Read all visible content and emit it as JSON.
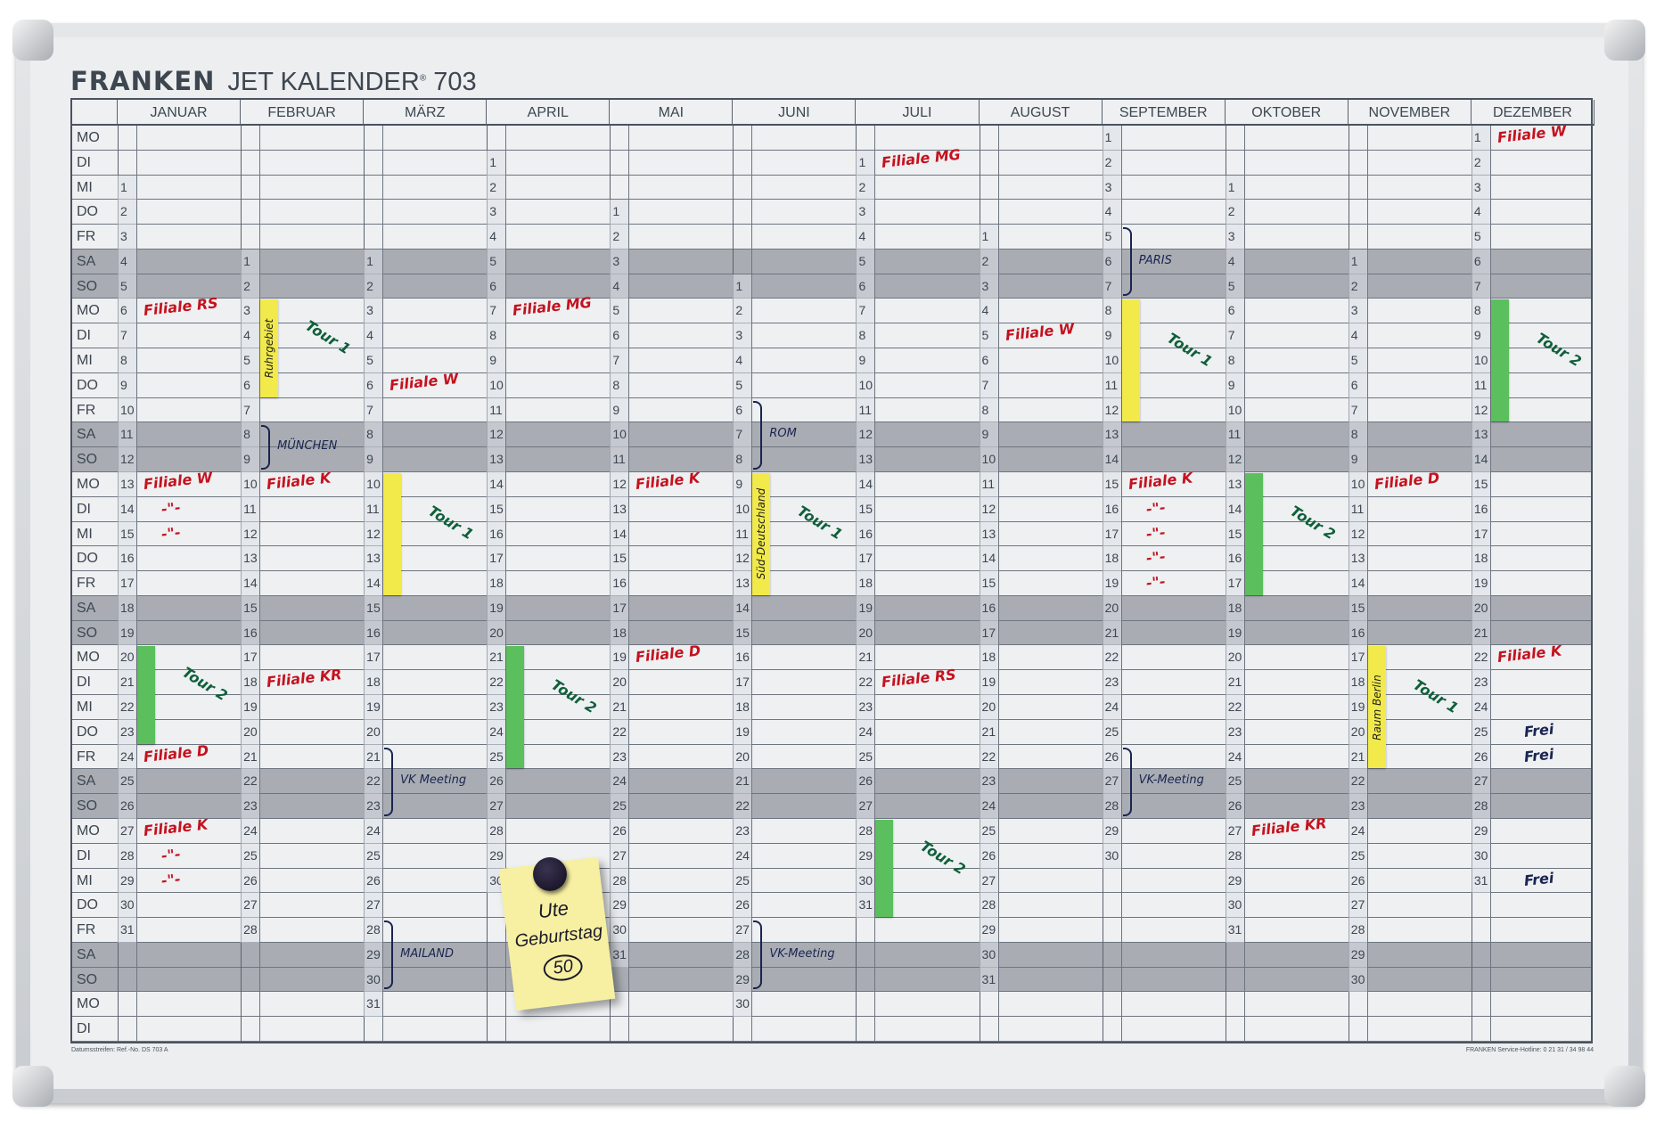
{
  "header": {
    "brand": "FRANKEN",
    "product": "JET KALENDER",
    "reg": "®",
    "model": "703"
  },
  "weekdays": [
    "MO",
    "DI",
    "MI",
    "DO",
    "FR",
    "SA",
    "SO",
    "MO",
    "DI",
    "MI",
    "DO",
    "FR",
    "SA",
    "SO",
    "MO",
    "DI",
    "MI",
    "DO",
    "FR",
    "SA",
    "SO",
    "MO",
    "DI",
    "MI",
    "DO",
    "FR",
    "SA",
    "SO",
    "MO",
    "DI",
    "MI",
    "DO",
    "FR",
    "SA",
    "SO",
    "MO",
    "DI"
  ],
  "weekend": [
    "SA",
    "SO"
  ],
  "months": [
    {
      "name": "JANUAR",
      "first_row": 2,
      "days": 31
    },
    {
      "name": "FEBRUAR",
      "first_row": 5,
      "days": 28
    },
    {
      "name": "MÄRZ",
      "first_row": 5,
      "days": 31
    },
    {
      "name": "APRIL",
      "first_row": 1,
      "days": 30
    },
    {
      "name": "MAI",
      "first_row": 3,
      "days": 31
    },
    {
      "name": "JUNI",
      "first_row": 6,
      "days": 30
    },
    {
      "name": "JULI",
      "first_row": 1,
      "days": 31
    },
    {
      "name": "AUGUST",
      "first_row": 4,
      "days": 31
    },
    {
      "name": "SEPTEMBER",
      "first_row": 0,
      "days": 30
    },
    {
      "name": "OKTOBER",
      "first_row": 2,
      "days": 31
    },
    {
      "name": "NOVEMBER",
      "first_row": 5,
      "days": 30
    },
    {
      "name": "DEZEMBER",
      "first_row": 0,
      "days": 31
    }
  ],
  "colors": {
    "red": "#c4121e",
    "green": "#0f5f3a",
    "navy": "#1a2450",
    "yellow": "#f2ea4a",
    "stripgreen": "#5cbf5e"
  },
  "notes": [
    {
      "m": 0,
      "d": 6,
      "text": "Filiale RS",
      "c": "red"
    },
    {
      "m": 0,
      "d": 13,
      "text": "Filiale W",
      "c": "red"
    },
    {
      "m": 0,
      "d": 14,
      "text": "-\"-",
      "c": "red"
    },
    {
      "m": 0,
      "d": 15,
      "text": "-\"-",
      "c": "red"
    },
    {
      "m": 0,
      "d": 24,
      "text": "Filiale D",
      "c": "red"
    },
    {
      "m": 0,
      "d": 27,
      "text": "Filiale K",
      "c": "red"
    },
    {
      "m": 0,
      "d": 28,
      "text": "-\"-",
      "c": "red"
    },
    {
      "m": 0,
      "d": 29,
      "text": "-\"-",
      "c": "red"
    },
    {
      "m": 1,
      "d": 10,
      "text": "Filiale K",
      "c": "red"
    },
    {
      "m": 1,
      "d": 18,
      "text": "Filiale KR",
      "c": "red"
    },
    {
      "m": 2,
      "d": 6,
      "text": "Filiale W",
      "c": "red"
    },
    {
      "m": 3,
      "d": 7,
      "text": "Filiale MG",
      "c": "red"
    },
    {
      "m": 4,
      "d": 12,
      "text": "Filiale K",
      "c": "red"
    },
    {
      "m": 4,
      "d": 19,
      "text": "Filiale D",
      "c": "red"
    },
    {
      "m": 6,
      "d": 1,
      "text": "Filiale MG",
      "c": "red"
    },
    {
      "m": 6,
      "d": 22,
      "text": "Filiale RS",
      "c": "red"
    },
    {
      "m": 7,
      "d": 5,
      "text": "Filiale W",
      "c": "red"
    },
    {
      "m": 8,
      "d": 15,
      "text": "Filiale K",
      "c": "red"
    },
    {
      "m": 8,
      "d": 16,
      "text": "-\"-",
      "c": "red"
    },
    {
      "m": 8,
      "d": 17,
      "text": "-\"-",
      "c": "red"
    },
    {
      "m": 8,
      "d": 18,
      "text": "-\"-",
      "c": "red"
    },
    {
      "m": 8,
      "d": 19,
      "text": "-\"-",
      "c": "red"
    },
    {
      "m": 9,
      "d": 27,
      "text": "Filiale KR",
      "c": "red"
    },
    {
      "m": 10,
      "d": 10,
      "text": "Filiale D",
      "c": "red"
    },
    {
      "m": 11,
      "d": 1,
      "text": "Filiale W",
      "c": "red"
    },
    {
      "m": 11,
      "d": 22,
      "text": "Filiale K",
      "c": "red"
    },
    {
      "m": 11,
      "d": 25,
      "text": "Frei",
      "c": "navy"
    },
    {
      "m": 11,
      "d": 26,
      "text": "Frei",
      "c": "navy"
    },
    {
      "m": 11,
      "d": 31,
      "text": "Frei",
      "c": "navy"
    }
  ],
  "strips": [
    {
      "m": 0,
      "from": 20,
      "to": 23,
      "c": "stripgreen",
      "label": "",
      "tour": "Tour 2"
    },
    {
      "m": 1,
      "from": 3,
      "to": 6,
      "c": "yellow",
      "label": "Ruhrgebiet",
      "tour": "Tour 1"
    },
    {
      "m": 2,
      "from": 10,
      "to": 14,
      "c": "yellow",
      "label": "",
      "tour": "Tour 1"
    },
    {
      "m": 3,
      "from": 21,
      "to": 25,
      "c": "stripgreen",
      "label": "",
      "tour": "Tour 2"
    },
    {
      "m": 5,
      "from": 9,
      "to": 13,
      "c": "yellow",
      "label": "Süd-Deutschland",
      "tour": "Tour 1"
    },
    {
      "m": 6,
      "from": 28,
      "to": 31,
      "c": "stripgreen",
      "label": "",
      "tour": "Tour 2"
    },
    {
      "m": 8,
      "from": 8,
      "to": 12,
      "c": "yellow",
      "label": "",
      "tour": "Tour 1"
    },
    {
      "m": 9,
      "from": 13,
      "to": 17,
      "c": "stripgreen",
      "label": "",
      "tour": "Tour 2"
    },
    {
      "m": 10,
      "from": 17,
      "to": 21,
      "c": "yellow",
      "label": "Raum Berlin",
      "tour": "Tour 1"
    },
    {
      "m": 11,
      "from": 8,
      "to": 12,
      "c": "stripgreen",
      "label": "",
      "tour": "Tour 2"
    }
  ],
  "brackets": [
    {
      "m": 1,
      "from": 8,
      "to": 9,
      "label": "MÜNCHEN"
    },
    {
      "m": 2,
      "from": 21,
      "to": 23,
      "label": "VK Meeting"
    },
    {
      "m": 2,
      "from": 28,
      "to": 30,
      "label": "MAILAND"
    },
    {
      "m": 5,
      "from": 6,
      "to": 8,
      "label": "ROM"
    },
    {
      "m": 5,
      "from": 27,
      "to": 29,
      "label": "VK-Meeting"
    },
    {
      "m": 8,
      "from": 5,
      "to": 7,
      "label": "PARIS"
    },
    {
      "m": 8,
      "from": 26,
      "to": 28,
      "label": "VK-Meeting"
    }
  ],
  "sticky": {
    "line1": "Ute",
    "line2": "Geburtstag",
    "line3": "50"
  },
  "footer": {
    "left": "Datumsstreifen: Ref.-No. DS 703 A",
    "right": "FRANKEN Service-Hotline: 0 21 31 / 34 98 44"
  }
}
